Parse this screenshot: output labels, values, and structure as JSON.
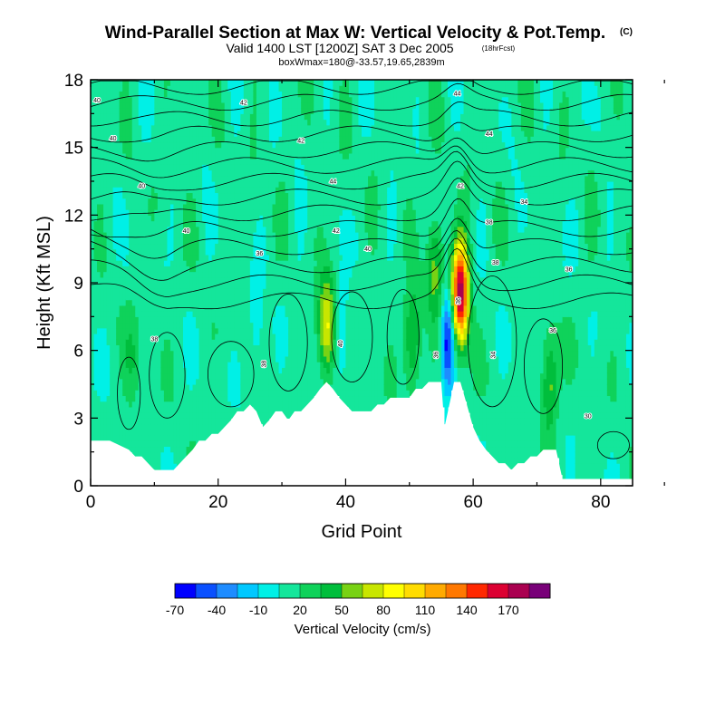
{
  "chart_data": {
    "type": "heatmap",
    "title": "Wind-Parallel Section at Max W: Vertical Velocity & Pot.Temp.",
    "title_mark": "(C)",
    "subtitle": "Valid 1400 LST [1200Z] SAT 3 Dec 2005",
    "subtitle_note": "(18hrFcst)",
    "subtitle2": "boxWmax=180@-33.57,19.65,2839m",
    "xlabel": "Grid Point",
    "ylabel": "Height (Kft MSL)",
    "xlim": [
      0,
      85
    ],
    "ylim": [
      0,
      18
    ],
    "xticks": [
      0,
      20,
      40,
      60,
      80
    ],
    "yticks": [
      0,
      3,
      6,
      9,
      12,
      15,
      18
    ],
    "colorbar": {
      "label": "Vertical Velocity (cm/s)",
      "tick_labels": [
        "-70",
        "-40",
        "-10",
        "20",
        "50",
        "80",
        "110",
        "140",
        "170"
      ],
      "tick_values": [
        -70,
        -40,
        -10,
        20,
        50,
        80,
        110,
        140,
        170
      ],
      "bins": [
        -70,
        -55,
        -40,
        -25,
        -10,
        5,
        20,
        35,
        50,
        65,
        80,
        95,
        110,
        125,
        140,
        155,
        170,
        185
      ],
      "colors": [
        "#0000ff",
        "#0a50ff",
        "#1e8cff",
        "#00c8ff",
        "#00f0e6",
        "#14e69b",
        "#0fd25a",
        "#00be3c",
        "#78d214",
        "#c8e600",
        "#ffff00",
        "#ffdc00",
        "#ffaa00",
        "#ff7800",
        "#ff2800",
        "#dc0032",
        "#aa0050",
        "#780078"
      ]
    },
    "terrain": {
      "x": [
        0,
        3,
        6,
        7,
        8,
        9,
        10,
        11,
        12,
        13,
        14,
        15,
        16,
        17,
        18,
        19,
        20,
        21,
        22,
        23,
        24,
        25,
        26,
        27,
        28,
        29,
        30,
        31,
        32,
        33,
        34,
        35,
        36,
        37,
        38,
        39,
        40,
        41,
        42,
        43,
        44,
        45,
        46,
        47,
        48,
        49,
        50,
        51,
        52,
        53,
        54,
        55,
        55.5,
        56.5,
        57,
        58,
        59,
        60,
        61,
        62,
        63,
        64,
        65,
        66,
        67,
        68,
        69,
        70,
        71,
        72,
        73,
        74,
        75,
        76,
        77,
        78,
        79,
        80,
        81,
        82,
        83,
        84,
        85
      ],
      "height_kft": [
        2.0,
        2.0,
        1.6,
        1.3,
        1.3,
        1.0,
        0.7,
        0.7,
        0.7,
        0.7,
        1.0,
        1.3,
        1.6,
        2.0,
        2.0,
        2.3,
        2.3,
        2.6,
        2.9,
        3.3,
        3.3,
        3.6,
        3.3,
        2.6,
        2.9,
        3.3,
        3.3,
        2.9,
        3.3,
        3.3,
        3.6,
        3.9,
        4.3,
        4.6,
        4.3,
        3.9,
        3.6,
        3.3,
        3.3,
        3.3,
        3.3,
        3.6,
        3.6,
        3.9,
        3.9,
        3.9,
        3.9,
        4.3,
        4.3,
        4.6,
        4.6,
        4.6,
        2.6,
        3.9,
        4.6,
        4.6,
        3.6,
        2.6,
        2.0,
        1.6,
        1.3,
        1.0,
        1.0,
        0.7,
        1.0,
        1.0,
        1.3,
        1.3,
        1.6,
        1.6,
        1.6,
        0.3,
        0.3,
        0.3,
        0.3,
        0.3,
        0.3,
        0.3,
        0.3,
        0.3,
        0.3,
        0.3,
        0.3
      ]
    },
    "updraft_cores": [
      {
        "x": 37,
        "z_kft": 7.0,
        "peak_cm_s": 85
      },
      {
        "x": 50.5,
        "z_kft": 6.5,
        "peak_cm_s": 60
      },
      {
        "x": 54,
        "z_kft": 9.6,
        "peak_cm_s": 55
      },
      {
        "x": 58,
        "z_kft": 8.6,
        "peak_cm_s": 180
      },
      {
        "x": 72,
        "z_kft": 4.5,
        "peak_cm_s": 60
      },
      {
        "x": 6.5,
        "z_kft": 5.5,
        "peak_cm_s": 30
      }
    ],
    "downdraft_cores": [
      {
        "x": 56,
        "z_kft": 6.5,
        "peak_cm_s": -70
      },
      {
        "x": 39.5,
        "z_kft": 6.8,
        "peak_cm_s": -20
      },
      {
        "x": 26,
        "z_kft": 7.0,
        "peak_cm_s": -15
      }
    ],
    "theta_contour_labels": [
      "40",
      "42",
      "44",
      "40",
      "42",
      "44",
      "40",
      "44",
      "42",
      "40",
      "42",
      "38",
      "36",
      "40",
      "38",
      "38",
      "36",
      "40",
      "38",
      "36",
      "34",
      "36",
      "36",
      "34",
      "30"
    ]
  }
}
